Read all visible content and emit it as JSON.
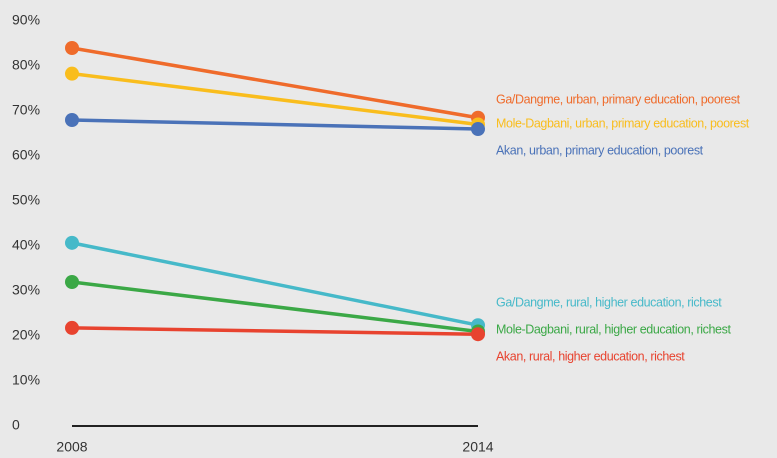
{
  "chart_data": {
    "type": "slope",
    "categories": [
      "2008",
      "2014"
    ],
    "ylim": [
      0,
      90
    ],
    "yticks": [
      0,
      {
        "value": 10,
        "label": "10%"
      },
      {
        "value": 20,
        "label": "20%"
      },
      {
        "value": 30,
        "label": "30%"
      },
      {
        "value": 40,
        "label": "40%"
      },
      {
        "value": 50,
        "label": "50%"
      },
      {
        "value": 60,
        "label": "60%"
      },
      {
        "value": 70,
        "label": "70%"
      },
      {
        "value": 80,
        "label": "80%"
      },
      {
        "value": 90,
        "label": "90%"
      }
    ],
    "grid": false,
    "series": [
      {
        "name": "Ga/Dangme, urban, primary education, poorest",
        "color": "#ef6b2b",
        "values": [
          84,
          68.5
        ]
      },
      {
        "name": "Mole-Dagbani, urban, primary education, poorest",
        "color": "#f9bd1d",
        "values": [
          78.3,
          67
        ]
      },
      {
        "name": "Akan, urban, primary education, poorest",
        "color": "#4a72b8",
        "values": [
          68,
          66
        ]
      },
      {
        "name": "Ga/Dangme, rural, higher education, richest",
        "color": "#46b9c9",
        "values": [
          40.7,
          22.4
        ]
      },
      {
        "name": "Mole-Dagbani, rural, higher education, richest",
        "color": "#3ba846",
        "values": [
          32,
          21
        ]
      },
      {
        "name": "Akan, rural, higher education, richest",
        "color": "#e8432f",
        "values": [
          21.8,
          20.4
        ]
      }
    ]
  }
}
